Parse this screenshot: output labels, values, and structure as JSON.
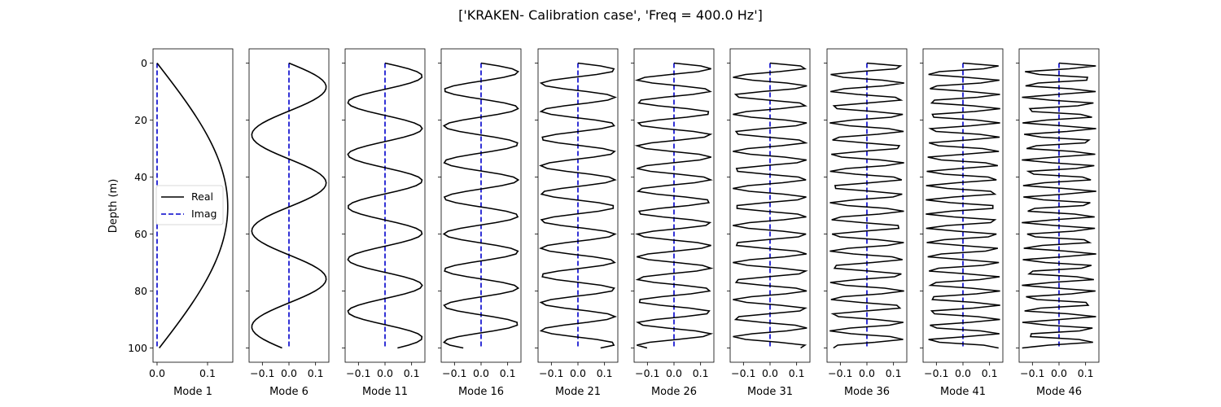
{
  "figure": {
    "title": "['KRAKEN- Calibration case', 'Freq = 400.0 Hz']",
    "ylabel": "Depth (m)"
  },
  "legend": {
    "real_label": "Real",
    "imag_label": "Imag",
    "placement": "center-left of first panel"
  },
  "colors": {
    "real": "#000000",
    "imag": "#0000cc",
    "axes": "#000000",
    "background": "#ffffff"
  },
  "chart_data": {
    "type": "line",
    "y_axis": {
      "label": "Depth (m)",
      "range": [
        105,
        -5
      ],
      "inverted": true,
      "ticks": [
        0,
        20,
        40,
        60,
        80,
        100
      ]
    },
    "depth_range": [
      0,
      100
    ],
    "grid": false,
    "panels": [
      {
        "mode": 1,
        "xlabel": "Mode 1",
        "xlim": [
          -0.008,
          0.15
        ],
        "xticks": [
          0.0,
          0.1
        ],
        "xticklabels": [
          "0.0",
          "0.1"
        ],
        "amplitude": 0.14,
        "cycles": 1
      },
      {
        "mode": 6,
        "xlabel": "Mode 6",
        "xlim": [
          -0.15,
          0.15
        ],
        "xticks": [
          -0.1,
          0.0,
          0.1
        ],
        "xticklabels": [
          "−0.1",
          "0.0",
          "0.1"
        ],
        "amplitude": 0.14,
        "cycles": 6
      },
      {
        "mode": 11,
        "xlabel": "Mode 11",
        "xlim": [
          -0.15,
          0.15
        ],
        "xticks": [
          -0.1,
          0.0,
          0.1
        ],
        "xticklabels": [
          "−0.1",
          "0.0",
          "0.1"
        ],
        "amplitude": 0.14,
        "cycles": 11
      },
      {
        "mode": 16,
        "xlabel": "Mode 16",
        "xlim": [
          -0.15,
          0.15
        ],
        "xticks": [
          -0.1,
          0.0,
          0.1
        ],
        "xticklabels": [
          "−0.1",
          "0.0",
          "0.1"
        ],
        "amplitude": 0.14,
        "cycles": 16
      },
      {
        "mode": 21,
        "xlabel": "Mode 21",
        "xlim": [
          -0.15,
          0.15
        ],
        "xticks": [
          -0.1,
          0.0,
          0.1
        ],
        "xticklabels": [
          "−0.1",
          "0.0",
          "0.1"
        ],
        "amplitude": 0.14,
        "cycles": 21
      },
      {
        "mode": 26,
        "xlabel": "Mode 26",
        "xlim": [
          -0.15,
          0.15
        ],
        "xticks": [
          -0.1,
          0.0,
          0.1
        ],
        "xticklabels": [
          "−0.1",
          "0.0",
          "0.1"
        ],
        "amplitude": 0.14,
        "cycles": 26
      },
      {
        "mode": 31,
        "xlabel": "Mode 31",
        "xlim": [
          -0.15,
          0.15
        ],
        "xticks": [
          -0.1,
          0.0,
          0.1
        ],
        "xticklabels": [
          "−0.1",
          "0.0",
          "0.1"
        ],
        "amplitude": 0.14,
        "cycles": 31
      },
      {
        "mode": 36,
        "xlabel": "Mode 36",
        "xlim": [
          -0.15,
          0.15
        ],
        "xticks": [
          -0.1,
          0.0,
          0.1
        ],
        "xticklabels": [
          "−0.1",
          "0.0",
          "0.1"
        ],
        "amplitude": 0.14,
        "cycles": 36
      },
      {
        "mode": 41,
        "xlabel": "Mode 41",
        "xlim": [
          -0.15,
          0.15
        ],
        "xticks": [
          -0.1,
          0.0,
          0.1
        ],
        "xticklabels": [
          "−0.1",
          "0.0",
          "0.1"
        ],
        "amplitude": 0.14,
        "cycles": 41
      },
      {
        "mode": 46,
        "xlabel": "Mode 46",
        "xlim": [
          -0.15,
          0.15
        ],
        "xticks": [
          -0.1,
          0.0,
          0.1
        ],
        "xticklabels": [
          "−0.1",
          "0.0",
          "0.1"
        ],
        "amplitude": 0.14,
        "cycles": 46
      }
    ]
  }
}
